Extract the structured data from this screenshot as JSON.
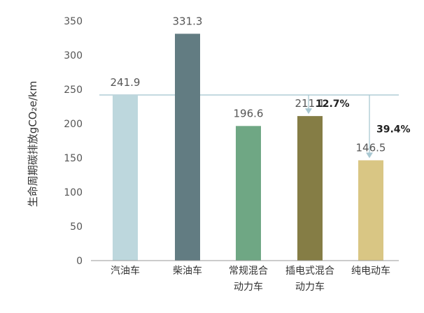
{
  "chart_data": {
    "type": "bar",
    "ylabel": "生命周期碳排放gCO₂e/km",
    "ylim": [
      0,
      350
    ],
    "yticks": [
      0,
      50,
      100,
      150,
      200,
      250,
      300,
      350
    ],
    "categories": [
      [
        "汽油车"
      ],
      [
        "柴油车"
      ],
      [
        "常规混合",
        "动力车"
      ],
      [
        "插电式混合",
        "动力车"
      ],
      [
        "纯电动车"
      ]
    ],
    "values": [
      241.9,
      331.3,
      196.6,
      211.1,
      146.5
    ],
    "value_labels": [
      "241.9",
      "331.3",
      "196.6",
      "211.1",
      "146.5"
    ],
    "bar_colors": [
      "#bdd7dd",
      "#627c82",
      "#6fa784",
      "#857d45",
      "#d9c684"
    ],
    "reference_line": {
      "value": 241.9,
      "color": "#a9c8d2"
    },
    "annotations": [
      {
        "category_index": 3,
        "text": "12.7%"
      },
      {
        "category_index": 4,
        "text": "39.4%"
      }
    ],
    "grid": false
  }
}
